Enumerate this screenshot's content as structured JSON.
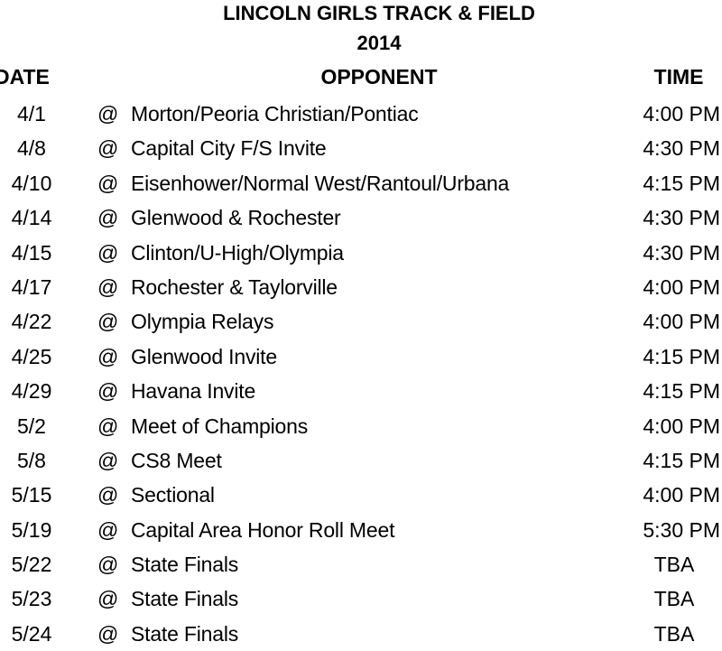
{
  "title": "LINCOLN GIRLS TRACK & FIELD",
  "year": "2014",
  "headers": {
    "date": "DATE",
    "opponent": "OPPONENT",
    "time": "TIME"
  },
  "rows": [
    {
      "date": "4/1",
      "at": "@",
      "opponent": "Morton/Peoria Christian/Pontiac",
      "time": "4:00 PM"
    },
    {
      "date": "4/8",
      "at": "@",
      "opponent": "Capital City F/S Invite",
      "time": "4:30 PM"
    },
    {
      "date": "4/10",
      "at": "@",
      "opponent": "Eisenhower/Normal West/Rantoul/Urbana",
      "time": "4:15 PM"
    },
    {
      "date": "4/14",
      "at": "@",
      "opponent": "Glenwood & Rochester",
      "time": "4:30 PM"
    },
    {
      "date": "4/15",
      "at": "@",
      "opponent": "Clinton/U-High/Olympia",
      "time": "4:30 PM"
    },
    {
      "date": "4/17",
      "at": "@",
      "opponent": "Rochester & Taylorville",
      "time": "4:00 PM"
    },
    {
      "date": "4/22",
      "at": "@",
      "opponent": "Olympia Relays",
      "time": "4:00 PM"
    },
    {
      "date": "4/25",
      "at": "@",
      "opponent": "Glenwood Invite",
      "time": "4:15 PM"
    },
    {
      "date": "4/29",
      "at": "@",
      "opponent": "Havana Invite",
      "time": "4:15 PM"
    },
    {
      "date": "5/2",
      "at": "@",
      "opponent": "Meet of Champions",
      "time": "4:00 PM"
    },
    {
      "date": "5/8",
      "at": "@",
      "opponent": "CS8 Meet",
      "time": "4:15 PM"
    },
    {
      "date": "5/15",
      "at": "@",
      "opponent": "Sectional",
      "time": "4:00 PM"
    },
    {
      "date": "5/19",
      "at": "@",
      "opponent": "Capital Area Honor Roll Meet",
      "time": "5:30 PM"
    },
    {
      "date": "5/22",
      "at": "@",
      "opponent": "State Finals",
      "time": "TBA"
    },
    {
      "date": "5/23",
      "at": "@",
      "opponent": "State Finals",
      "time": "TBA"
    },
    {
      "date": "5/24",
      "at": "@",
      "opponent": "State Finals",
      "time": "TBA"
    }
  ]
}
